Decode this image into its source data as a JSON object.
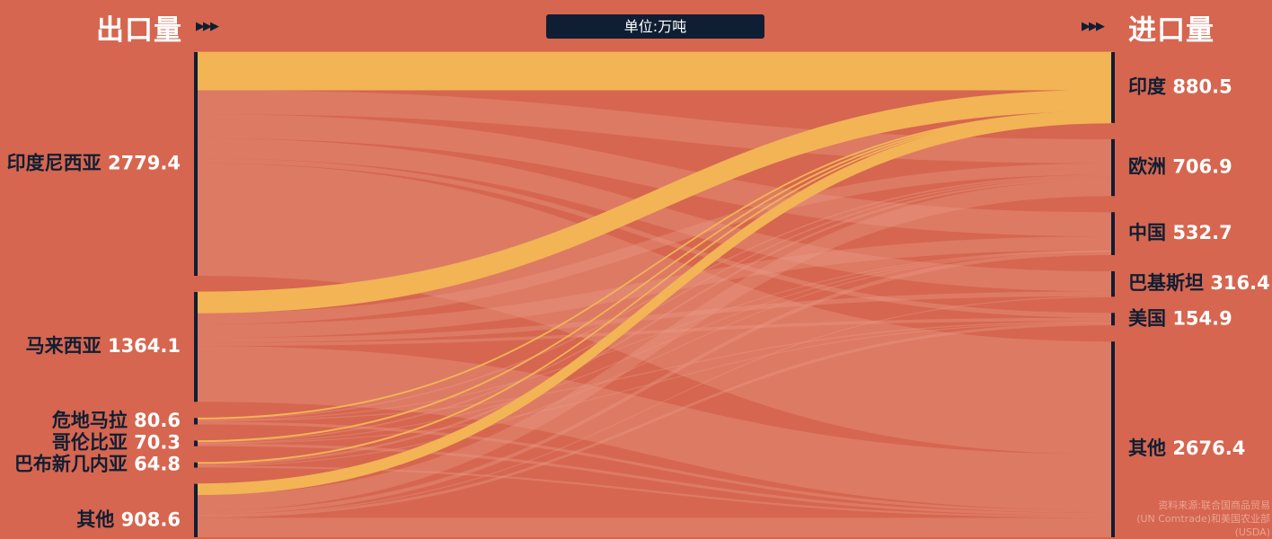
{
  "header": {
    "export_title": "出口量",
    "import_title": "进口量",
    "arrows": "▶▶▶",
    "unit": "单位:万吨"
  },
  "source": {
    "line1": "资料来源:联合国商品贸易",
    "line2": "(UN Comtrade)和美国农业部",
    "line3": "(USDA)"
  },
  "colors": {
    "background": "#d66650",
    "flow": "#ea9a85",
    "highlight": "#f2b455",
    "bar": "#0f1e33",
    "label": "#0f1e33",
    "value": "#ffffff"
  },
  "chart_data": {
    "type": "sankey",
    "unit": "万吨",
    "exporters": [
      {
        "name": "印度尼西亚",
        "value": 2779.4
      },
      {
        "name": "马来西亚",
        "value": 1364.1
      },
      {
        "name": "危地马拉",
        "value": 80.6
      },
      {
        "name": "哥伦比亚",
        "value": 70.3
      },
      {
        "name": "巴布新几内亚",
        "value": 64.8
      },
      {
        "name": "其他",
        "value": 908.6
      }
    ],
    "importers": [
      {
        "name": "印度",
        "value": 880.5
      },
      {
        "name": "欧洲",
        "value": 706.9
      },
      {
        "name": "中国",
        "value": 532.7
      },
      {
        "name": "巴基斯坦",
        "value": 316.4
      },
      {
        "name": "美国",
        "value": 154.9
      },
      {
        "name": "其他",
        "value": 2676.4
      }
    ],
    "highlight_target": "印度",
    "flows": [
      {
        "from": "印度尼西亚",
        "to": "印度",
        "value": 470
      },
      {
        "from": "印度尼西亚",
        "to": "欧洲",
        "value": 300
      },
      {
        "from": "印度尼西亚",
        "to": "中国",
        "value": 300
      },
      {
        "from": "印度尼西亚",
        "to": "巴基斯坦",
        "value": 250
      },
      {
        "from": "印度尼西亚",
        "to": "美国",
        "value": 60
      },
      {
        "from": "印度尼西亚",
        "to": "其他",
        "value": 1399.4
      },
      {
        "from": "马来西亚",
        "to": "印度",
        "value": 260
      },
      {
        "from": "马来西亚",
        "to": "欧洲",
        "value": 140
      },
      {
        "from": "马来西亚",
        "to": "中国",
        "value": 170
      },
      {
        "from": "马来西亚",
        "to": "巴基斯坦",
        "value": 60
      },
      {
        "from": "马来西亚",
        "to": "美国",
        "value": 40
      },
      {
        "from": "马来西亚",
        "to": "其他",
        "value": 694.1
      },
      {
        "from": "危地马拉",
        "to": "印度",
        "value": 5
      },
      {
        "from": "危地马拉",
        "to": "欧洲",
        "value": 20
      },
      {
        "from": "危地马拉",
        "to": "中国",
        "value": 5
      },
      {
        "from": "危地马拉",
        "to": "美国",
        "value": 15
      },
      {
        "from": "危地马拉",
        "to": "其他",
        "value": 35.6
      },
      {
        "from": "哥伦比亚",
        "to": "印度",
        "value": 5
      },
      {
        "from": "哥伦比亚",
        "to": "欧洲",
        "value": 20
      },
      {
        "from": "哥伦比亚",
        "to": "中国",
        "value": 5
      },
      {
        "from": "哥伦比亚",
        "to": "美国",
        "value": 5
      },
      {
        "from": "哥伦比亚",
        "to": "其他",
        "value": 35.3
      },
      {
        "from": "巴布新几内亚",
        "to": "印度",
        "value": 5
      },
      {
        "from": "巴布新几内亚",
        "to": "欧洲",
        "value": 30
      },
      {
        "from": "巴布新几内亚",
        "to": "中国",
        "value": 5
      },
      {
        "from": "巴布新几内亚",
        "to": "其他",
        "value": 24.8
      },
      {
        "from": "其他",
        "to": "印度",
        "value": 135.5
      },
      {
        "from": "其他",
        "to": "欧洲",
        "value": 196.9
      },
      {
        "from": "其他",
        "to": "中国",
        "value": 47.7
      },
      {
        "from": "其他",
        "to": "巴基斯坦",
        "value": 6.4
      },
      {
        "from": "其他",
        "to": "美国",
        "value": 34.9
      },
      {
        "from": "其他",
        "to": "其他",
        "value": 487.2
      }
    ]
  }
}
